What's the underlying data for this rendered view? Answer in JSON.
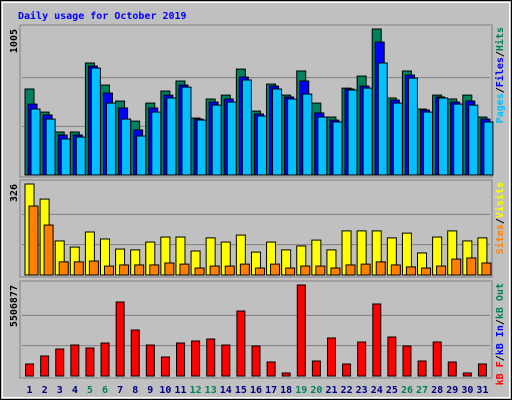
{
  "chart_data": [
    {
      "type": "bar",
      "title": "Daily usage for October 2019",
      "ylim": [
        0,
        1005
      ],
      "yticks": [
        1005
      ],
      "grid": 3,
      "series": [
        {
          "name": "Hits",
          "color": "#00805c",
          "values": [
            592,
            433,
            296,
            296,
            771,
            619,
            509,
            371,
            495,
            578,
            647,
            392,
            523,
            550,
            729,
            440,
            626,
            550,
            716,
            495,
            399,
            598,
            681,
            1005,
            530,
            716,
            454,
            550,
            523,
            550,
            399
          ]
        },
        {
          "name": "Files",
          "color": "#0000ff",
          "values": [
            488,
            413,
            275,
            275,
            750,
            564,
            461,
            310,
            461,
            550,
            619,
            385,
            502,
            523,
            674,
            420,
            612,
            537,
            647,
            427,
            378,
            592,
            612,
            915,
            516,
            688,
            447,
            537,
            502,
            509,
            385
          ]
        },
        {
          "name": "Pages",
          "color": "#00c0ff",
          "values": [
            454,
            385,
            248,
            261,
            736,
            495,
            385,
            268,
            433,
            530,
            605,
            378,
            481,
            502,
            654,
            406,
            592,
            523,
            557,
            399,
            365,
            585,
            598,
            771,
            495,
            667,
            433,
            530,
            488,
            481,
            365
          ]
        }
      ]
    },
    {
      "type": "bar",
      "ylim": [
        0,
        326
      ],
      "yticks": [
        326
      ],
      "grid": 3,
      "series": [
        {
          "name": "Visits",
          "color": "#ffff00",
          "values": [
            326,
            272,
            122,
            100,
            154,
            129,
            93,
            90,
            118,
            136,
            136,
            86,
            133,
            118,
            143,
            82,
            118,
            90,
            104,
            125,
            90,
            158,
            158,
            158,
            133,
            150,
            79,
            136,
            158,
            122,
            133
          ]
        },
        {
          "name": "Sites",
          "color": "#ff8000",
          "values": [
            247,
            179,
            47,
            47,
            50,
            32,
            36,
            36,
            36,
            43,
            39,
            25,
            32,
            32,
            39,
            25,
            39,
            25,
            32,
            32,
            25,
            36,
            39,
            47,
            36,
            29,
            25,
            32,
            57,
            61,
            43
          ]
        }
      ]
    },
    {
      "type": "bar",
      "ylim": [
        0,
        5506877
      ],
      "yticks": [
        5506877
      ],
      "grid": 3,
      "categories": [
        "1",
        "2",
        "3",
        "4",
        "5",
        "6",
        "7",
        "8",
        "9",
        "10",
        "11",
        "12",
        "13",
        "14",
        "15",
        "16",
        "17",
        "18",
        "19",
        "20",
        "21",
        "22",
        "23",
        "24",
        "25",
        "26",
        "27",
        "28",
        "29",
        "30",
        "31"
      ],
      "category_colors": [
        "#000080",
        "#000080",
        "#000080",
        "#000080",
        "#00805c",
        "#00805c",
        "#000080",
        "#000080",
        "#000080",
        "#000080",
        "#000080",
        "#00805c",
        "#00805c",
        "#000080",
        "#000080",
        "#000080",
        "#000080",
        "#000080",
        "#00805c",
        "#00805c",
        "#000080",
        "#000080",
        "#000080",
        "#000080",
        "#000080",
        "#00805c",
        "#00805c",
        "#000080",
        "#000080",
        "#000080",
        "#000080"
      ],
      "series": [
        {
          "name": "kB Out",
          "color": "#00805c",
          "values": [
            null,
            null,
            null,
            null,
            null,
            null,
            null,
            null,
            null,
            null,
            null,
            null,
            null,
            null,
            null,
            null,
            null,
            null,
            null,
            null,
            null,
            null,
            null,
            null,
            null,
            null,
            null,
            null,
            null,
            null,
            null
          ]
        },
        {
          "name": "kB In",
          "color": "#0000ff",
          "values": [
            null,
            null,
            null,
            null,
            null,
            null,
            null,
            null,
            null,
            null,
            null,
            null,
            null,
            null,
            null,
            null,
            null,
            null,
            null,
            null,
            null,
            null,
            null,
            null,
            null,
            null,
            null,
            null,
            null,
            null,
            null
          ]
        },
        {
          "name": "kB F",
          "color": "#ff0000",
          "values": [
            726000,
            1210000,
            1634000,
            1876000,
            1694000,
            1997000,
            4478000,
            2784000,
            1876000,
            1150000,
            1997000,
            2118000,
            2239000,
            1876000,
            3933000,
            1815000,
            847000,
            182000,
            5506877,
            908000,
            2300000,
            726000,
            2058000,
            4357000,
            2360000,
            1815000,
            908000,
            2058000,
            847000,
            182000,
            726000
          ]
        }
      ]
    }
  ],
  "legend_separator": "/"
}
